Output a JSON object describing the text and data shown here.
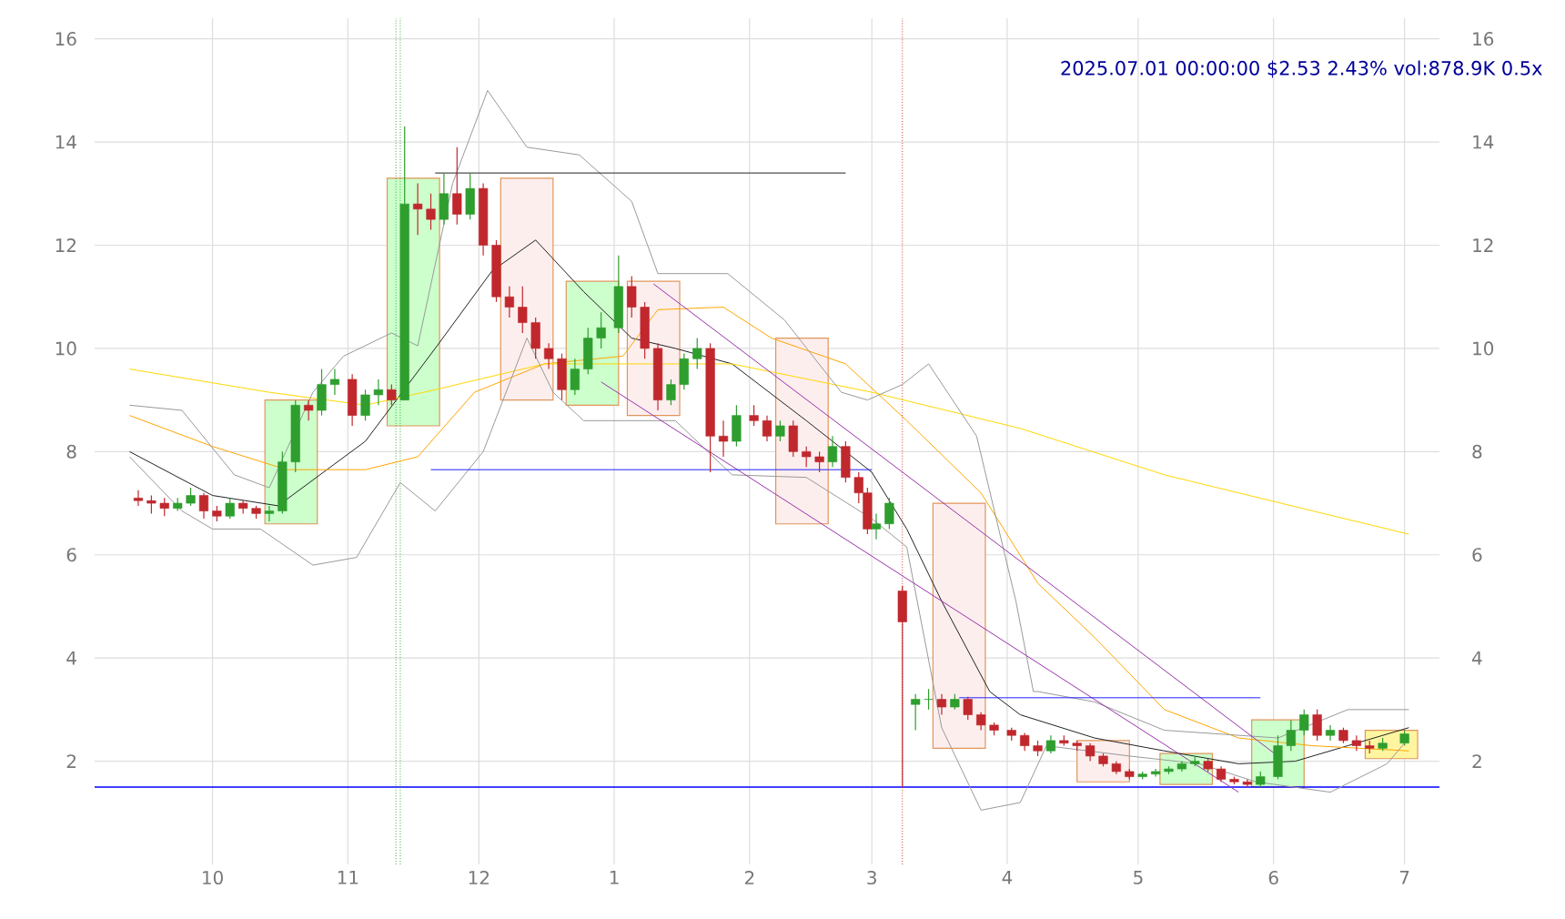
{
  "chart_data": {
    "type": "candlestick",
    "title": "2025.07.01 00:00:00 $2.53 2.43% vol:878.9K 0.5x",
    "x": [
      "2024-09-14",
      "2024-09-17",
      "2024-09-20",
      "2024-09-23",
      "2024-09-26",
      "2024-09-29",
      "2024-10-02",
      "2024-10-05",
      "2024-10-08",
      "2024-10-11",
      "2024-10-14",
      "2024-10-17",
      "2024-10-20",
      "2024-10-23",
      "2024-10-26",
      "2024-10-29",
      "2024-11-02",
      "2024-11-05",
      "2024-11-08",
      "2024-11-11",
      "2024-11-14",
      "2024-11-17",
      "2024-11-20",
      "2024-11-23",
      "2024-11-26",
      "2024-11-29",
      "2024-12-02",
      "2024-12-05",
      "2024-12-08",
      "2024-12-11",
      "2024-12-14",
      "2024-12-17",
      "2024-12-20",
      "2024-12-23",
      "2024-12-26",
      "2024-12-29",
      "2025-01-02",
      "2025-01-05",
      "2025-01-08",
      "2025-01-11",
      "2025-01-14",
      "2025-01-17",
      "2025-01-20",
      "2025-01-23",
      "2025-01-26",
      "2025-01-29",
      "2025-02-02",
      "2025-02-05",
      "2025-02-08",
      "2025-02-11",
      "2025-02-14",
      "2025-02-17",
      "2025-02-20",
      "2025-02-23",
      "2025-02-26",
      "2025-02-28",
      "2025-03-02",
      "2025-03-05",
      "2025-03-08",
      "2025-03-11",
      "2025-03-14",
      "2025-03-17",
      "2025-03-20",
      "2025-03-23",
      "2025-03-26",
      "2025-03-29",
      "2025-04-02",
      "2025-04-05",
      "2025-04-08",
      "2025-04-11",
      "2025-04-14",
      "2025-04-17",
      "2025-04-20",
      "2025-04-23",
      "2025-04-26",
      "2025-04-29",
      "2025-05-02",
      "2025-05-05",
      "2025-05-08",
      "2025-05-11",
      "2025-05-14",
      "2025-05-17",
      "2025-05-20",
      "2025-05-23",
      "2025-05-26",
      "2025-05-29",
      "2025-06-02",
      "2025-06-05",
      "2025-06-08",
      "2025-06-11",
      "2025-06-14",
      "2025-06-17",
      "2025-06-20",
      "2025-06-23",
      "2025-06-26",
      "2025-07-01"
    ],
    "ohlc": [
      [
        7.1,
        7.25,
        6.95,
        7.05
      ],
      [
        7.05,
        7.15,
        6.8,
        7.0
      ],
      [
        7.0,
        7.1,
        6.75,
        6.9
      ],
      [
        6.9,
        7.1,
        6.85,
        7.0
      ],
      [
        7.0,
        7.3,
        6.95,
        7.15
      ],
      [
        7.15,
        7.2,
        6.7,
        6.85
      ],
      [
        6.85,
        6.95,
        6.65,
        6.75
      ],
      [
        6.75,
        7.1,
        6.7,
        7.0
      ],
      [
        7.0,
        7.05,
        6.8,
        6.9
      ],
      [
        6.9,
        6.95,
        6.7,
        6.8
      ],
      [
        6.8,
        6.95,
        6.65,
        6.85
      ],
      [
        6.85,
        8.0,
        6.8,
        7.8
      ],
      [
        7.8,
        9.0,
        7.6,
        8.9
      ],
      [
        8.9,
        9.0,
        8.6,
        8.8
      ],
      [
        8.8,
        9.6,
        8.7,
        9.3
      ],
      [
        9.3,
        9.6,
        9.1,
        9.4
      ],
      [
        9.4,
        9.5,
        8.5,
        8.7
      ],
      [
        8.7,
        9.2,
        8.6,
        9.1
      ],
      [
        9.1,
        9.4,
        8.9,
        9.2
      ],
      [
        9.2,
        9.3,
        8.9,
        9.0
      ],
      [
        9.0,
        14.3,
        9.0,
        12.8
      ],
      [
        12.8,
        13.2,
        12.2,
        12.7
      ],
      [
        12.7,
        13.0,
        12.3,
        12.5
      ],
      [
        12.5,
        13.4,
        12.4,
        13.0
      ],
      [
        13.0,
        13.9,
        12.4,
        12.6
      ],
      [
        12.6,
        13.4,
        12.5,
        13.1
      ],
      [
        13.1,
        13.2,
        11.8,
        12.0
      ],
      [
        12.0,
        12.1,
        10.9,
        11.0
      ],
      [
        11.0,
        11.2,
        10.6,
        10.8
      ],
      [
        10.8,
        11.2,
        10.3,
        10.5
      ],
      [
        10.5,
        10.6,
        9.8,
        10.0
      ],
      [
        10.0,
        10.1,
        9.6,
        9.8
      ],
      [
        9.8,
        9.9,
        9.0,
        9.2
      ],
      [
        9.2,
        9.8,
        9.1,
        9.6
      ],
      [
        9.6,
        10.4,
        9.5,
        10.2
      ],
      [
        10.2,
        10.7,
        10.0,
        10.4
      ],
      [
        10.4,
        11.8,
        10.3,
        11.2
      ],
      [
        11.2,
        11.4,
        10.6,
        10.8
      ],
      [
        10.8,
        10.9,
        9.8,
        10.0
      ],
      [
        10.0,
        10.1,
        8.8,
        9.0
      ],
      [
        9.0,
        9.4,
        8.9,
        9.3
      ],
      [
        9.3,
        9.9,
        9.2,
        9.8
      ],
      [
        9.8,
        10.2,
        9.6,
        10.0
      ],
      [
        10.0,
        10.1,
        7.6,
        8.3
      ],
      [
        8.3,
        8.6,
        7.9,
        8.2
      ],
      [
        8.2,
        8.9,
        8.1,
        8.7
      ],
      [
        8.7,
        8.9,
        8.5,
        8.6
      ],
      [
        8.6,
        8.7,
        8.2,
        8.3
      ],
      [
        8.3,
        8.6,
        8.2,
        8.5
      ],
      [
        8.5,
        8.6,
        7.9,
        8.0
      ],
      [
        8.0,
        8.1,
        7.7,
        7.9
      ],
      [
        7.9,
        8.0,
        7.6,
        7.8
      ],
      [
        7.8,
        8.3,
        7.7,
        8.1
      ],
      [
        8.1,
        8.2,
        7.4,
        7.5
      ],
      [
        7.5,
        7.6,
        7.0,
        7.2
      ],
      [
        7.2,
        7.3,
        6.4,
        6.5
      ],
      [
        6.5,
        6.8,
        6.3,
        6.6
      ],
      [
        6.6,
        7.1,
        6.5,
        7.0
      ],
      [
        5.3,
        5.4,
        1.5,
        4.7
      ],
      [
        3.1,
        3.3,
        2.6,
        3.2
      ],
      [
        3.2,
        3.4,
        3.0,
        3.2
      ],
      [
        3.2,
        3.3,
        2.9,
        3.05
      ],
      [
        3.05,
        3.3,
        3.0,
        3.2
      ],
      [
        3.2,
        3.25,
        2.8,
        2.9
      ],
      [
        2.9,
        2.95,
        2.6,
        2.7
      ],
      [
        2.7,
        2.75,
        2.5,
        2.6
      ],
      [
        2.6,
        2.65,
        2.4,
        2.5
      ],
      [
        2.5,
        2.55,
        2.2,
        2.3
      ],
      [
        2.3,
        2.4,
        2.1,
        2.2
      ],
      [
        2.2,
        2.5,
        2.15,
        2.4
      ],
      [
        2.4,
        2.5,
        2.3,
        2.35
      ],
      [
        2.35,
        2.4,
        2.2,
        2.3
      ],
      [
        2.3,
        2.35,
        2.0,
        2.1
      ],
      [
        2.1,
        2.15,
        1.9,
        1.95
      ],
      [
        1.95,
        2.0,
        1.75,
        1.8
      ],
      [
        1.8,
        1.85,
        1.65,
        1.7
      ],
      [
        1.7,
        1.8,
        1.65,
        1.75
      ],
      [
        1.75,
        1.85,
        1.7,
        1.8
      ],
      [
        1.8,
        1.9,
        1.75,
        1.85
      ],
      [
        1.85,
        2.0,
        1.8,
        1.95
      ],
      [
        1.95,
        2.1,
        1.9,
        2.0
      ],
      [
        2.0,
        2.05,
        1.8,
        1.85
      ],
      [
        1.85,
        1.9,
        1.6,
        1.65
      ],
      [
        1.65,
        1.7,
        1.55,
        1.6
      ],
      [
        1.6,
        1.65,
        1.5,
        1.55
      ],
      [
        1.55,
        1.8,
        1.5,
        1.7
      ],
      [
        1.7,
        2.5,
        1.65,
        2.3
      ],
      [
        2.3,
        2.8,
        2.2,
        2.6
      ],
      [
        2.6,
        3.0,
        2.5,
        2.9
      ],
      [
        2.9,
        3.0,
        2.4,
        2.5
      ],
      [
        2.5,
        2.7,
        2.4,
        2.6
      ],
      [
        2.6,
        2.65,
        2.35,
        2.4
      ],
      [
        2.4,
        2.5,
        2.2,
        2.3
      ],
      [
        2.3,
        2.4,
        2.15,
        2.25
      ],
      [
        2.25,
        2.45,
        2.2,
        2.35
      ],
      [
        2.35,
        2.6,
        2.3,
        2.53
      ]
    ],
    "series": [
      {
        "type": "bar",
        "x": [
          "2024-10-19",
          "2024-11-16",
          "2024-12-12",
          "2024-12-27",
          "2025-01-10",
          "2025-02-13",
          "2025-03-21",
          "2025-04-23",
          "2025-05-12",
          "2025-06-02",
          "2025-06-28"
        ],
        "base": [
          6.6,
          8.5,
          9.0,
          8.9,
          8.7,
          6.6,
          2.25,
          1.6,
          1.55,
          1.5,
          2.05
        ],
        "values": [
          2.4,
          4.8,
          4.3,
          2.4,
          2.6,
          3.6,
          4.75,
          0.8,
          0.6,
          1.3,
          0.55
        ],
        "colors": [
          "#ccffcc",
          "#ccffcc",
          "#fdeeee",
          "#ccffcc",
          "#fdeeee",
          "#fdeeee",
          "#fdeeee",
          "#fdeeee",
          "#ccffcc",
          "#ccffcc",
          "#fff5a0"
        ]
      },
      {
        "type": "line",
        "color": "#222222",
        "x": [
          "2024-09-12",
          "2024-10-01",
          "2024-10-16",
          "2024-11-05",
          "2024-11-21",
          "2024-12-04",
          "2024-12-14",
          "2024-12-25",
          "2025-01-05",
          "2025-01-15",
          "2025-01-28",
          "2025-02-14",
          "2025-03-01",
          "2025-03-09",
          "2025-03-17",
          "2025-03-28",
          "2025-04-04",
          "2025-04-21",
          "2025-05-07",
          "2025-05-24",
          "2025-06-06",
          "2025-06-18",
          "2025-07-02"
        ],
        "values": [
          8.0,
          7.15,
          6.95,
          8.2,
          10.0,
          11.5,
          12.1,
          11.1,
          10.2,
          10.0,
          9.7,
          8.6,
          7.6,
          6.5,
          5.1,
          3.35,
          2.9,
          2.45,
          2.2,
          1.95,
          2.0,
          2.3,
          2.65
        ]
      },
      {
        "type": "line",
        "color": "#ffa500",
        "x": [
          "2024-09-12",
          "2024-10-01",
          "2024-10-18",
          "2024-11-05",
          "2024-11-17",
          "2024-11-30",
          "2024-12-16",
          "2025-01-03",
          "2025-01-11",
          "2025-01-26",
          "2025-02-06",
          "2025-02-23",
          "2025-03-09",
          "2025-03-26",
          "2025-04-08",
          "2025-04-21",
          "2025-05-07",
          "2025-05-24",
          "2025-06-10",
          "2025-07-02"
        ],
        "values": [
          8.7,
          8.1,
          7.65,
          7.65,
          7.9,
          9.15,
          9.7,
          9.85,
          10.75,
          10.8,
          10.2,
          9.7,
          8.6,
          7.2,
          5.45,
          4.4,
          3.0,
          2.45,
          2.3,
          2.2
        ]
      },
      {
        "type": "line",
        "color": "#ffd700",
        "x": [
          "2024-09-12",
          "2024-10-14",
          "2024-11-05",
          "2024-11-21",
          "2024-12-16",
          "2025-01-28",
          "2025-03-01",
          "2025-04-04",
          "2025-05-07",
          "2025-06-10",
          "2025-07-02"
        ],
        "values": [
          9.6,
          9.15,
          8.9,
          9.2,
          9.7,
          9.7,
          9.15,
          8.45,
          7.55,
          6.85,
          6.4
        ]
      },
      {
        "type": "line",
        "color": "#999999",
        "x": [
          "2024-09-12",
          "2024-09-24",
          "2024-10-06",
          "2024-10-14",
          "2024-10-24",
          "2024-10-31",
          "2024-11-11",
          "2024-11-17",
          "2024-11-25",
          "2024-12-03",
          "2024-12-12",
          "2024-12-24",
          "2025-01-05",
          "2025-01-11",
          "2025-01-27",
          "2025-02-09",
          "2025-02-22",
          "2025-02-28",
          "2025-03-08",
          "2025-03-14",
          "2025-03-25",
          "2025-04-03",
          "2025-04-07",
          "2025-04-08",
          "2025-04-21",
          "2025-05-07",
          "2025-06-02",
          "2025-06-18",
          "2025-07-02"
        ],
        "values": [
          8.9,
          8.8,
          7.55,
          7.3,
          9.15,
          9.85,
          10.3,
          10.05,
          13.2,
          15.0,
          13.9,
          13.75,
          12.85,
          11.45,
          11.45,
          10.55,
          9.15,
          9.0,
          9.3,
          9.7,
          8.3,
          5.1,
          3.35,
          3.35,
          3.15,
          2.6,
          2.45,
          3.0,
          3.0
        ]
      },
      {
        "type": "line",
        "color": "#999999",
        "x": [
          "2024-09-12",
          "2024-09-24",
          "2024-10-01",
          "2024-10-12",
          "2024-10-24",
          "2024-11-03",
          "2024-11-13",
          "2024-11-21",
          "2024-12-02",
          "2024-12-12",
          "2024-12-18",
          "2024-12-25",
          "2025-01-05",
          "2025-01-15",
          "2025-01-28",
          "2025-02-14",
          "2025-03-01",
          "2025-03-09",
          "2025-03-17",
          "2025-03-26",
          "2025-04-04",
          "2025-04-10",
          "2025-04-29",
          "2025-05-15",
          "2025-05-28",
          "2025-06-14",
          "2025-06-27",
          "2025-07-02"
        ],
        "values": [
          7.9,
          6.85,
          6.5,
          6.5,
          5.8,
          5.95,
          7.4,
          6.85,
          8.0,
          10.2,
          9.15,
          8.6,
          8.6,
          8.6,
          7.55,
          7.5,
          6.7,
          6.15,
          2.65,
          1.05,
          1.2,
          2.3,
          2.1,
          1.95,
          1.6,
          1.4,
          1.95,
          2.45
        ]
      },
      {
        "type": "line",
        "color": "#9933aa",
        "x": [
          "2025-01-10",
          "2025-06-02"
        ],
        "values": [
          11.25,
          2.1
        ]
      },
      {
        "type": "line",
        "color": "#9933aa",
        "x": [
          "2024-12-29",
          "2025-05-24"
        ],
        "values": [
          9.35,
          1.4
        ]
      },
      {
        "type": "line",
        "color": "#222222",
        "x": [
          "2024-11-21",
          "2025-02-23"
        ],
        "values": [
          13.4,
          13.4
        ]
      },
      {
        "type": "line",
        "color": "#2222ff",
        "x": [
          "2024-11-20",
          "2025-03-01"
        ],
        "values": [
          7.65,
          7.65
        ]
      },
      {
        "type": "line",
        "color": "#2222ff",
        "x": [
          "2025-03-21",
          "2025-05-29"
        ],
        "values": [
          3.23,
          3.23
        ]
      }
    ],
    "ref_lines": [
      {
        "axis": "y",
        "value": 1.5,
        "color": "#0000ff"
      },
      {
        "axis": "x",
        "value": "2024-11-12",
        "color": "#33aa33",
        "line_style": "dotted"
      },
      {
        "axis": "x",
        "value": "2024-11-13",
        "color": "#33aa33",
        "line_style": "dotted"
      },
      {
        "axis": "x",
        "value": "2025-03-08",
        "color": "#cc3333",
        "line_style": "dotted"
      }
    ],
    "xlim": [
      "2024-09-04",
      "2025-07-09"
    ],
    "ylim": [
      0,
      16.4
    ],
    "y2lim": [
      0,
      16.4
    ],
    "xticks": [
      {
        "value": "2024-10-01",
        "label": "10"
      },
      {
        "value": "2024-11-01",
        "label": "11"
      },
      {
        "value": "2024-12-01",
        "label": "12"
      },
      {
        "value": "2025-01-01",
        "label": "1"
      },
      {
        "value": "2025-02-01",
        "label": "2"
      },
      {
        "value": "2025-03-01",
        "label": "3"
      },
      {
        "value": "2025-04-01",
        "label": "4"
      },
      {
        "value": "2025-05-01",
        "label": "5"
      },
      {
        "value": "2025-06-01",
        "label": "6"
      },
      {
        "value": "2025-07-01",
        "label": "7"
      }
    ],
    "yticks": [
      2,
      4,
      6,
      8,
      10,
      12,
      14,
      16
    ],
    "y2ticks": [
      2,
      4,
      6,
      8,
      10,
      12,
      14,
      16
    ],
    "grid": true
  }
}
